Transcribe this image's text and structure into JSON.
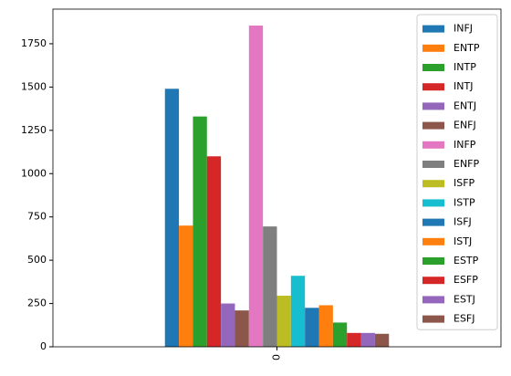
{
  "chart_data": {
    "type": "bar",
    "categories": [
      "0"
    ],
    "series": [
      {
        "name": "INFJ",
        "color": "#1f77b4",
        "values": [
          1490
        ]
      },
      {
        "name": "ENTP",
        "color": "#ff7f0e",
        "values": [
          700
        ]
      },
      {
        "name": "INTP",
        "color": "#2ca02c",
        "values": [
          1330
        ]
      },
      {
        "name": "INTJ",
        "color": "#d62728",
        "values": [
          1100
        ]
      },
      {
        "name": "ENTJ",
        "color": "#9467bd",
        "values": [
          250
        ]
      },
      {
        "name": "ENFJ",
        "color": "#8c564b",
        "values": [
          210
        ]
      },
      {
        "name": "INFP",
        "color": "#e377c2",
        "values": [
          1855
        ]
      },
      {
        "name": "ENFP",
        "color": "#7f7f7f",
        "values": [
          695
        ]
      },
      {
        "name": "ISFP",
        "color": "#bcbd22",
        "values": [
          295
        ]
      },
      {
        "name": "ISTP",
        "color": "#17becf",
        "values": [
          410
        ]
      },
      {
        "name": "ISFJ",
        "color": "#1f77b4",
        "values": [
          225
        ]
      },
      {
        "name": "ISTJ",
        "color": "#ff7f0e",
        "values": [
          240
        ]
      },
      {
        "name": "ESTP",
        "color": "#2ca02c",
        "values": [
          140
        ]
      },
      {
        "name": "ESFP",
        "color": "#d62728",
        "values": [
          80
        ]
      },
      {
        "name": "ESTJ",
        "color": "#9467bd",
        "values": [
          80
        ]
      },
      {
        "name": "ESFJ",
        "color": "#8c564b",
        "values": [
          75
        ]
      }
    ],
    "ylim": [
      0,
      1950
    ],
    "yticks": [
      0,
      250,
      500,
      750,
      1000,
      1250,
      1500,
      1750
    ],
    "legend": "upper-right"
  }
}
